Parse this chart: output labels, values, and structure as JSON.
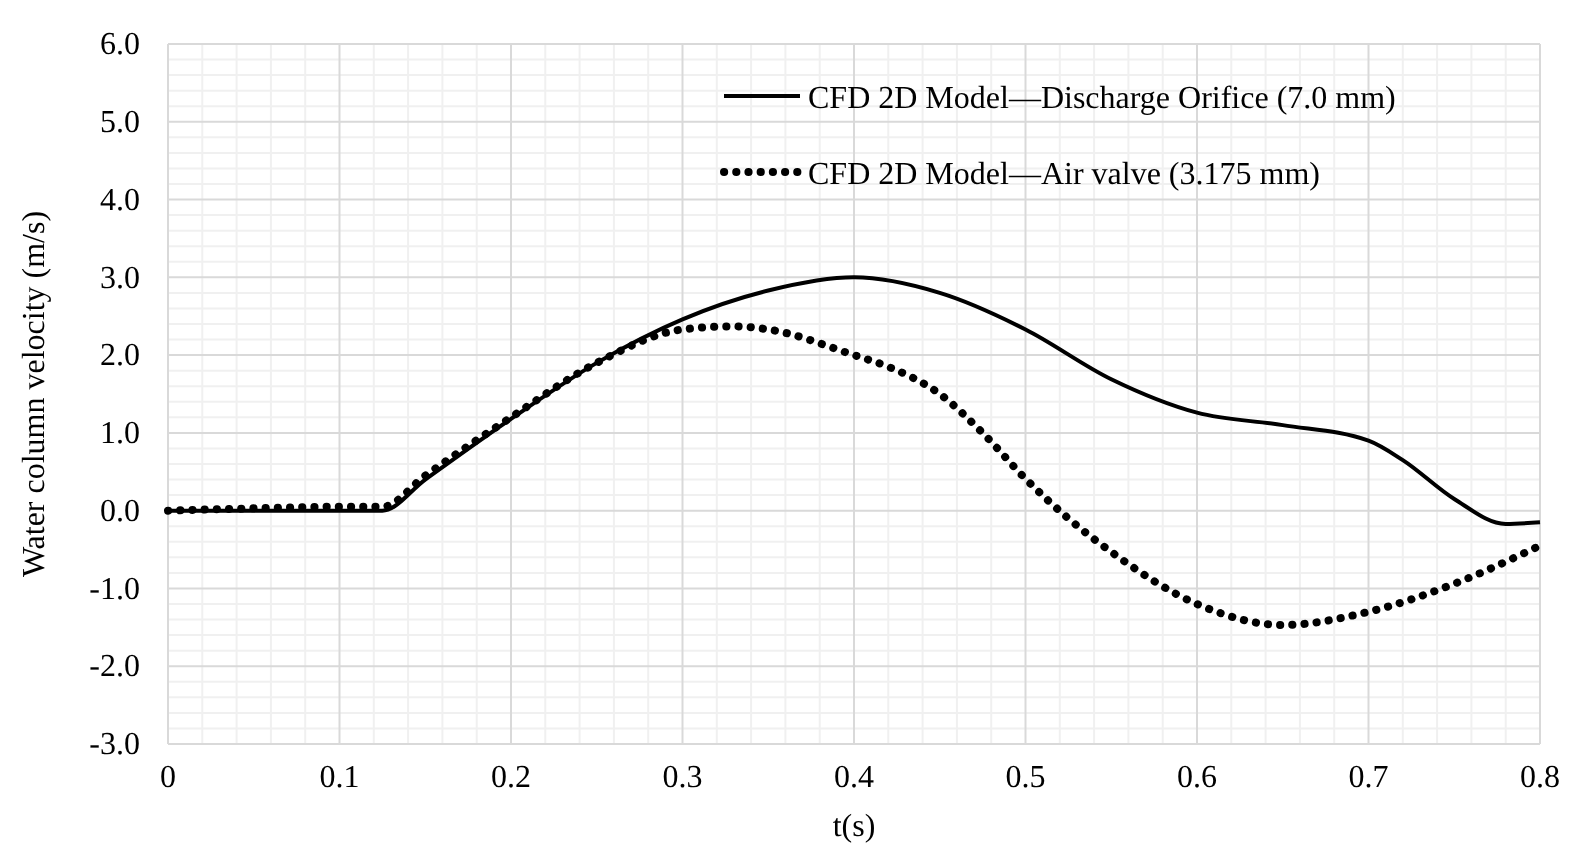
{
  "chart_data": {
    "type": "line",
    "xlabel": "t(s)",
    "ylabel": "Water column velocity (m/s)",
    "xlim": [
      0,
      0.8
    ],
    "xticks": [
      0,
      0.1,
      0.2,
      0.3,
      0.4,
      0.5,
      0.6,
      0.7,
      0.8
    ],
    "ylim": [
      -3,
      6
    ],
    "yticks": [
      {
        "value": -3,
        "label": "-3.0"
      },
      {
        "value": -2,
        "label": "-2.0"
      },
      {
        "value": -1,
        "label": "-1.0"
      },
      {
        "value": 0,
        "label": "0.0"
      },
      {
        "value": 1,
        "label": "1.0"
      },
      {
        "value": 2,
        "label": "2.0"
      },
      {
        "value": 3,
        "label": "3.0"
      },
      {
        "value": 4,
        "label": "4.0"
      },
      {
        "value": 5,
        "label": "5.0"
      },
      {
        "value": 6,
        "label": "6.0"
      }
    ],
    "grid": true,
    "legend": "top right",
    "marker": "none",
    "series": [
      {
        "name": "CFD 2D Model—Discharge Orifice (7.0 mm)",
        "color": "#000000",
        "line_style": "solid",
        "x": [
          0,
          0.05,
          0.1,
          0.125,
          0.15,
          0.2,
          0.25,
          0.3,
          0.35,
          0.4,
          0.45,
          0.5,
          0.55,
          0.6,
          0.65,
          0.7,
          0.72,
          0.75,
          0.78,
          0.8
        ],
        "values": [
          0,
          0,
          0,
          0,
          0.4,
          1.18,
          1.9,
          2.46,
          2.83,
          3.0,
          2.8,
          2.33,
          1.69,
          1.26,
          1.1,
          0.9,
          0.65,
          0.15,
          -0.17,
          -0.15
        ]
      },
      {
        "name": "CFD 2D Model—Air valve (3.175 mm)",
        "color": "#000000",
        "line_style": "dotted",
        "x": [
          0,
          0.05,
          0.1,
          0.125,
          0.15,
          0.2,
          0.25,
          0.3,
          0.33,
          0.35,
          0.4,
          0.42,
          0.45,
          0.475,
          0.5,
          0.525,
          0.55,
          0.6,
          0.65,
          0.7,
          0.75,
          0.8
        ],
        "values": [
          0,
          0.03,
          0.05,
          0.05,
          0.45,
          1.2,
          1.9,
          2.33,
          2.37,
          2.33,
          2.0,
          1.85,
          1.5,
          1.0,
          0.41,
          -0.1,
          -0.53,
          -1.2,
          -1.47,
          -1.3,
          -0.94,
          -0.45
        ]
      }
    ]
  }
}
